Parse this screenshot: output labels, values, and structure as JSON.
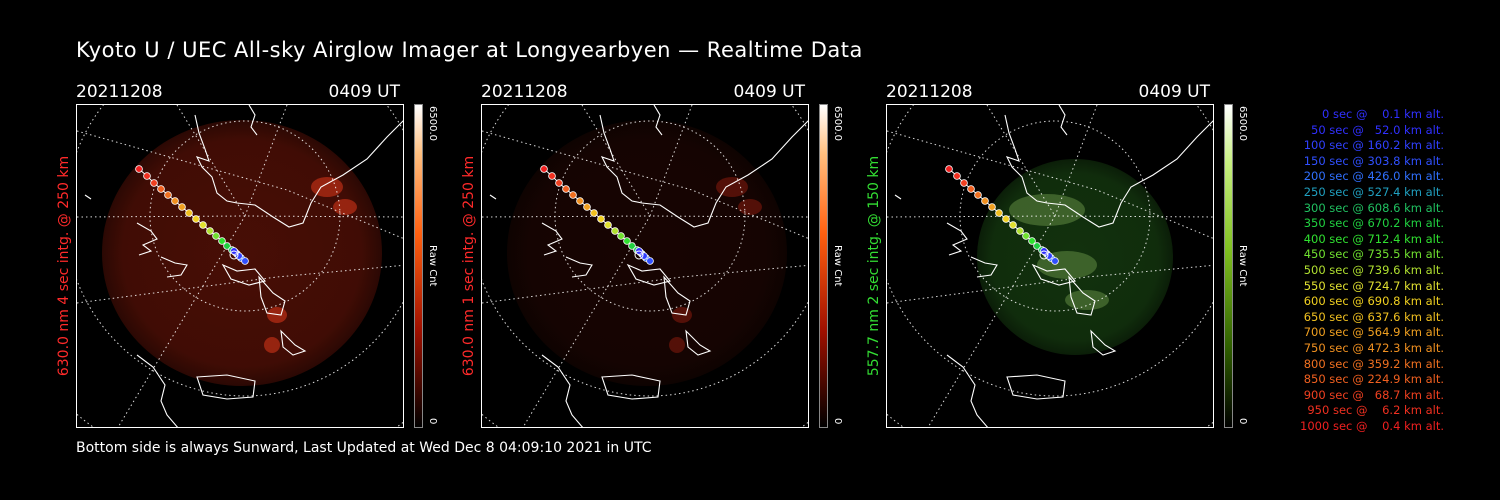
{
  "title": "Kyoto U / UEC All-sky Airglow Imager at Longyearbyen — Realtime Data",
  "footer": "Bottom side is always Sunward, Last Updated at Wed Dec  8 04:09:10 2021 in UTC",
  "panels": [
    {
      "date": "20211208",
      "time": "0409 UT",
      "side_label": "630.0 nm 4 sec intg. @ 250 km",
      "side_color": "#ff2a2a",
      "cbar_max": "6500.0",
      "cbar_unit": "Raw Cnt",
      "cbar_min": "0",
      "colormap": "red",
      "glow_intensity": 0.55
    },
    {
      "date": "20211208",
      "time": "0409 UT",
      "side_label": "630.0 nm 1 sec intg. @ 250 km",
      "side_color": "#ff2a2a",
      "cbar_max": "6500.0",
      "cbar_unit": "Raw Cnt",
      "cbar_min": "0",
      "colormap": "red",
      "glow_intensity": 0.18
    },
    {
      "date": "20211208",
      "time": "0409 UT",
      "side_label": "557.7 nm 2 sec intg. @ 150 km",
      "side_color": "#33dd33",
      "cbar_max": "6500.0",
      "cbar_unit": "Raw Cnt",
      "cbar_min": "0",
      "colormap": "green",
      "glow_intensity": 0.45
    }
  ],
  "legend": [
    {
      "text": "0 sec @    0.1 km alt.",
      "color": "#3030ff"
    },
    {
      "text": "50 sec @   52.0 km alt.",
      "color": "#3030ff"
    },
    {
      "text": "100 sec @ 160.2 km alt.",
      "color": "#3040ff"
    },
    {
      "text": "150 sec @ 303.8 km alt.",
      "color": "#3050ff"
    },
    {
      "text": "200 sec @ 426.0 km alt.",
      "color": "#3070ff"
    },
    {
      "text": "250 sec @ 527.4 km alt.",
      "color": "#20a0c0"
    },
    {
      "text": "300 sec @ 608.6 km alt.",
      "color": "#20c060"
    },
    {
      "text": "350 sec @ 670.2 km alt.",
      "color": "#20d040"
    },
    {
      "text": "400 sec @ 712.4 km alt.",
      "color": "#30e030"
    },
    {
      "text": "450 sec @ 735.5 km alt.",
      "color": "#70e030"
    },
    {
      "text": "500 sec @ 739.6 km alt.",
      "color": "#b0e030"
    },
    {
      "text": "550 sec @ 724.7 km alt.",
      "color": "#e0e030"
    },
    {
      "text": "600 sec @ 690.8 km alt.",
      "color": "#f0d020"
    },
    {
      "text": "650 sec @ 637.6 km alt.",
      "color": "#f0c020"
    },
    {
      "text": "700 sec @ 564.9 km alt.",
      "color": "#f0a020"
    },
    {
      "text": "750 sec @ 472.3 km alt.",
      "color": "#f09020"
    },
    {
      "text": "800 sec @ 359.2 km alt.",
      "color": "#f07020"
    },
    {
      "text": "850 sec @ 224.9 km alt.",
      "color": "#f06020"
    },
    {
      "text": "900 sec @   68.7 km alt.",
      "color": "#f04020"
    },
    {
      "text": "950 sec @    6.2 km alt.",
      "color": "#f03020"
    },
    {
      "text": "1000 sec @    0.4 km alt.",
      "color": "#f02020"
    }
  ]
}
